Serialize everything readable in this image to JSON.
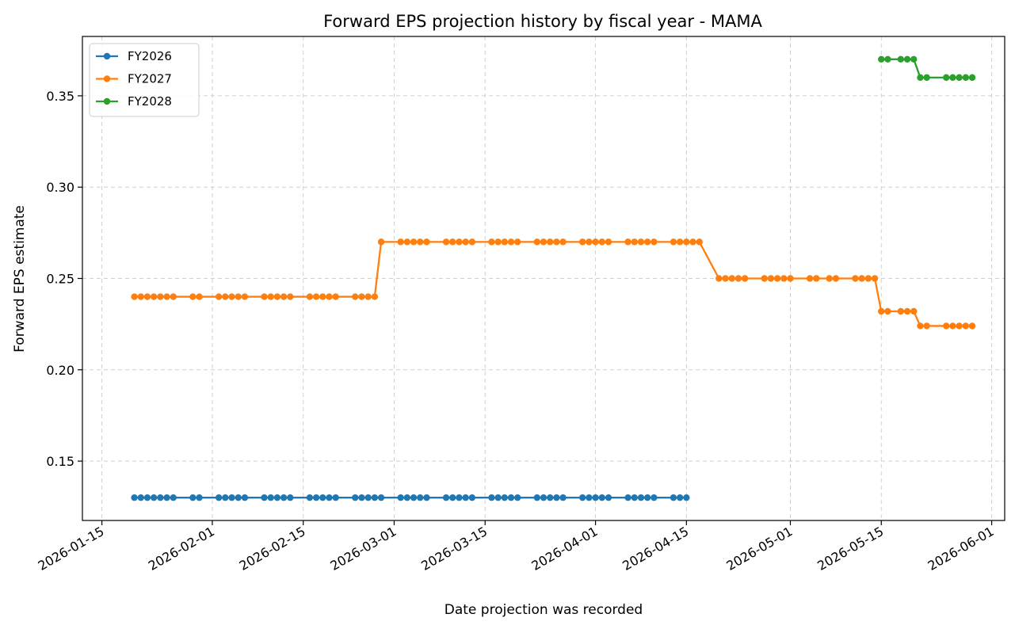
{
  "chart_data": {
    "type": "line",
    "title": "Forward EPS projection history by fiscal year - MAMA",
    "xlabel": "Date projection was recorded",
    "ylabel": "Forward EPS estimate",
    "xlim": [
      "2026-01-12",
      "2026-06-03"
    ],
    "ylim": [
      0.1175,
      0.3825
    ],
    "x_ticks": [
      "2026-01-15",
      "2026-02-01",
      "2026-02-15",
      "2026-03-01",
      "2026-03-15",
      "2026-04-01",
      "2026-04-15",
      "2026-05-01",
      "2026-05-15",
      "2026-06-01"
    ],
    "y_ticks": [
      0.15,
      0.2,
      0.25,
      0.3,
      0.35
    ],
    "y_tick_labels": [
      "0.15",
      "0.20",
      "0.25",
      "0.30",
      "0.35"
    ],
    "grid": true,
    "legend_position": "top-left",
    "series": [
      {
        "name": "FY2026",
        "color": "#1f77b4",
        "marker": "circle",
        "points": [
          [
            "2026-01-20",
            0.13
          ],
          [
            "2026-01-21",
            0.13
          ],
          [
            "2026-01-22",
            0.13
          ],
          [
            "2026-01-23",
            0.13
          ],
          [
            "2026-01-24",
            0.13
          ],
          [
            "2026-01-25",
            0.13
          ],
          [
            "2026-01-26",
            0.13
          ],
          [
            "2026-01-29",
            0.13
          ],
          [
            "2026-01-30",
            0.13
          ],
          [
            "2026-02-02",
            0.13
          ],
          [
            "2026-02-03",
            0.13
          ],
          [
            "2026-02-04",
            0.13
          ],
          [
            "2026-02-05",
            0.13
          ],
          [
            "2026-02-06",
            0.13
          ],
          [
            "2026-02-09",
            0.13
          ],
          [
            "2026-02-10",
            0.13
          ],
          [
            "2026-02-11",
            0.13
          ],
          [
            "2026-02-12",
            0.13
          ],
          [
            "2026-02-13",
            0.13
          ],
          [
            "2026-02-16",
            0.13
          ],
          [
            "2026-02-17",
            0.13
          ],
          [
            "2026-02-18",
            0.13
          ],
          [
            "2026-02-19",
            0.13
          ],
          [
            "2026-02-20",
            0.13
          ],
          [
            "2026-02-23",
            0.13
          ],
          [
            "2026-02-24",
            0.13
          ],
          [
            "2026-02-25",
            0.13
          ],
          [
            "2026-02-26",
            0.13
          ],
          [
            "2026-02-27",
            0.13
          ],
          [
            "2026-03-02",
            0.13
          ],
          [
            "2026-03-03",
            0.13
          ],
          [
            "2026-03-04",
            0.13
          ],
          [
            "2026-03-05",
            0.13
          ],
          [
            "2026-03-06",
            0.13
          ],
          [
            "2026-03-09",
            0.13
          ],
          [
            "2026-03-10",
            0.13
          ],
          [
            "2026-03-11",
            0.13
          ],
          [
            "2026-03-12",
            0.13
          ],
          [
            "2026-03-13",
            0.13
          ],
          [
            "2026-03-16",
            0.13
          ],
          [
            "2026-03-17",
            0.13
          ],
          [
            "2026-03-18",
            0.13
          ],
          [
            "2026-03-19",
            0.13
          ],
          [
            "2026-03-20",
            0.13
          ],
          [
            "2026-03-23",
            0.13
          ],
          [
            "2026-03-24",
            0.13
          ],
          [
            "2026-03-25",
            0.13
          ],
          [
            "2026-03-26",
            0.13
          ],
          [
            "2026-03-27",
            0.13
          ],
          [
            "2026-03-30",
            0.13
          ],
          [
            "2026-03-31",
            0.13
          ],
          [
            "2026-04-01",
            0.13
          ],
          [
            "2026-04-02",
            0.13
          ],
          [
            "2026-04-03",
            0.13
          ],
          [
            "2026-04-06",
            0.13
          ],
          [
            "2026-04-07",
            0.13
          ],
          [
            "2026-04-08",
            0.13
          ],
          [
            "2026-04-09",
            0.13
          ],
          [
            "2026-04-10",
            0.13
          ],
          [
            "2026-04-13",
            0.13
          ],
          [
            "2026-04-14",
            0.13
          ],
          [
            "2026-04-15",
            0.13
          ]
        ]
      },
      {
        "name": "FY2027",
        "color": "#ff7f0e",
        "marker": "circle",
        "points": [
          [
            "2026-01-20",
            0.24
          ],
          [
            "2026-01-21",
            0.24
          ],
          [
            "2026-01-22",
            0.24
          ],
          [
            "2026-01-23",
            0.24
          ],
          [
            "2026-01-24",
            0.24
          ],
          [
            "2026-01-25",
            0.24
          ],
          [
            "2026-01-26",
            0.24
          ],
          [
            "2026-01-29",
            0.24
          ],
          [
            "2026-01-30",
            0.24
          ],
          [
            "2026-02-02",
            0.24
          ],
          [
            "2026-02-03",
            0.24
          ],
          [
            "2026-02-04",
            0.24
          ],
          [
            "2026-02-05",
            0.24
          ],
          [
            "2026-02-06",
            0.24
          ],
          [
            "2026-02-09",
            0.24
          ],
          [
            "2026-02-10",
            0.24
          ],
          [
            "2026-02-11",
            0.24
          ],
          [
            "2026-02-12",
            0.24
          ],
          [
            "2026-02-13",
            0.24
          ],
          [
            "2026-02-16",
            0.24
          ],
          [
            "2026-02-17",
            0.24
          ],
          [
            "2026-02-18",
            0.24
          ],
          [
            "2026-02-19",
            0.24
          ],
          [
            "2026-02-20",
            0.24
          ],
          [
            "2026-02-23",
            0.24
          ],
          [
            "2026-02-24",
            0.24
          ],
          [
            "2026-02-25",
            0.24
          ],
          [
            "2026-02-26",
            0.24
          ],
          [
            "2026-02-27",
            0.27
          ],
          [
            "2026-03-02",
            0.27
          ],
          [
            "2026-03-03",
            0.27
          ],
          [
            "2026-03-04",
            0.27
          ],
          [
            "2026-03-05",
            0.27
          ],
          [
            "2026-03-06",
            0.27
          ],
          [
            "2026-03-09",
            0.27
          ],
          [
            "2026-03-10",
            0.27
          ],
          [
            "2026-03-11",
            0.27
          ],
          [
            "2026-03-12",
            0.27
          ],
          [
            "2026-03-13",
            0.27
          ],
          [
            "2026-03-16",
            0.27
          ],
          [
            "2026-03-17",
            0.27
          ],
          [
            "2026-03-18",
            0.27
          ],
          [
            "2026-03-19",
            0.27
          ],
          [
            "2026-03-20",
            0.27
          ],
          [
            "2026-03-23",
            0.27
          ],
          [
            "2026-03-24",
            0.27
          ],
          [
            "2026-03-25",
            0.27
          ],
          [
            "2026-03-26",
            0.27
          ],
          [
            "2026-03-27",
            0.27
          ],
          [
            "2026-03-30",
            0.27
          ],
          [
            "2026-03-31",
            0.27
          ],
          [
            "2026-04-01",
            0.27
          ],
          [
            "2026-04-02",
            0.27
          ],
          [
            "2026-04-03",
            0.27
          ],
          [
            "2026-04-06",
            0.27
          ],
          [
            "2026-04-07",
            0.27
          ],
          [
            "2026-04-08",
            0.27
          ],
          [
            "2026-04-09",
            0.27
          ],
          [
            "2026-04-10",
            0.27
          ],
          [
            "2026-04-13",
            0.27
          ],
          [
            "2026-04-14",
            0.27
          ],
          [
            "2026-04-15",
            0.27
          ],
          [
            "2026-04-16",
            0.27
          ],
          [
            "2026-04-17",
            0.27
          ],
          [
            "2026-04-20",
            0.25
          ],
          [
            "2026-04-21",
            0.25
          ],
          [
            "2026-04-22",
            0.25
          ],
          [
            "2026-04-23",
            0.25
          ],
          [
            "2026-04-24",
            0.25
          ],
          [
            "2026-04-27",
            0.25
          ],
          [
            "2026-04-28",
            0.25
          ],
          [
            "2026-04-29",
            0.25
          ],
          [
            "2026-04-30",
            0.25
          ],
          [
            "2026-05-01",
            0.25
          ],
          [
            "2026-05-04",
            0.25
          ],
          [
            "2026-05-05",
            0.25
          ],
          [
            "2026-05-07",
            0.25
          ],
          [
            "2026-05-08",
            0.25
          ],
          [
            "2026-05-11",
            0.25
          ],
          [
            "2026-05-12",
            0.25
          ],
          [
            "2026-05-13",
            0.25
          ],
          [
            "2026-05-14",
            0.25
          ],
          [
            "2026-05-15",
            0.232
          ],
          [
            "2026-05-16",
            0.232
          ],
          [
            "2026-05-18",
            0.232
          ],
          [
            "2026-05-19",
            0.232
          ],
          [
            "2026-05-20",
            0.232
          ],
          [
            "2026-05-21",
            0.224
          ],
          [
            "2026-05-22",
            0.224
          ],
          [
            "2026-05-25",
            0.224
          ],
          [
            "2026-05-26",
            0.224
          ],
          [
            "2026-05-27",
            0.224
          ],
          [
            "2026-05-28",
            0.224
          ],
          [
            "2026-05-29",
            0.224
          ]
        ]
      },
      {
        "name": "FY2028",
        "color": "#2ca02c",
        "marker": "circle",
        "points": [
          [
            "2026-05-15",
            0.37
          ],
          [
            "2026-05-16",
            0.37
          ],
          [
            "2026-05-18",
            0.37
          ],
          [
            "2026-05-19",
            0.37
          ],
          [
            "2026-05-20",
            0.37
          ],
          [
            "2026-05-21",
            0.36
          ],
          [
            "2026-05-22",
            0.36
          ],
          [
            "2026-05-25",
            0.36
          ],
          [
            "2026-05-26",
            0.36
          ],
          [
            "2026-05-27",
            0.36
          ],
          [
            "2026-05-28",
            0.36
          ],
          [
            "2026-05-29",
            0.36
          ]
        ]
      }
    ]
  }
}
